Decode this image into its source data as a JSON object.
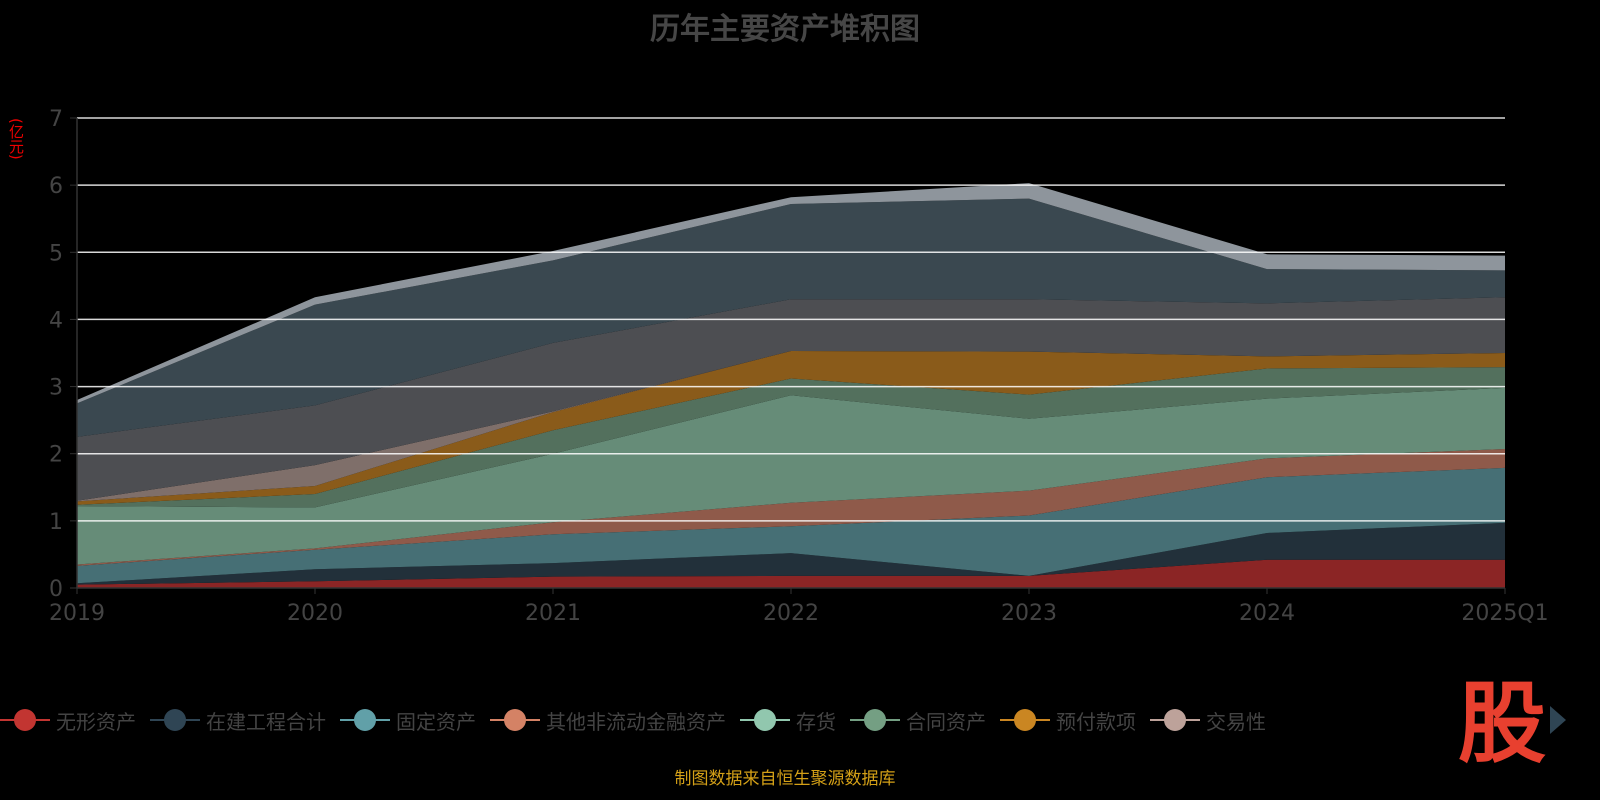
{
  "title": "历年主要资产堆积图",
  "source": "制图数据来自恒生聚源数据库",
  "logo_text": "股",
  "chart_data": {
    "type": "area",
    "stacked": true,
    "title": "历年主要资产堆积图",
    "ylabel": "(亿元)",
    "xlabel": "",
    "ylim": [
      0,
      7
    ],
    "yticks": [
      "0",
      "1",
      "2",
      "3",
      "4",
      "5",
      "6",
      "7"
    ],
    "categories": [
      "2019",
      "2020",
      "2021",
      "2022",
      "2023",
      "2024",
      "2025Q1"
    ],
    "grid": true,
    "legend_position": "bottom",
    "series": [
      {
        "name": "无形资产",
        "color": "#c23531",
        "fill": "#8b2525",
        "values": [
          0.05,
          0.1,
          0.17,
          0.18,
          0.18,
          0.42,
          0.42
        ]
      },
      {
        "name": "在建工程合计",
        "color": "#2f4554",
        "fill": "#22303a",
        "values": [
          0.02,
          0.18,
          0.2,
          0.34,
          0.0,
          0.4,
          0.55
        ]
      },
      {
        "name": "固定资产",
        "color": "#61a0a8",
        "fill": "#466f75",
        "values": [
          0.26,
          0.29,
          0.43,
          0.4,
          0.9,
          0.83,
          0.82
        ]
      },
      {
        "name": "其他非流动金融资产",
        "color": "#d48265",
        "fill": "#8f5a4a",
        "values": [
          0.02,
          0.02,
          0.18,
          0.35,
          0.37,
          0.28,
          0.28
        ]
      },
      {
        "name": "存货",
        "color": "#91c7ae",
        "fill": "#668c78",
        "values": [
          0.87,
          0.61,
          1.02,
          1.6,
          1.07,
          0.89,
          0.91
        ]
      },
      {
        "name": "合同资产",
        "color": "#749f83",
        "fill": "#53705d",
        "values": [
          0.02,
          0.2,
          0.35,
          0.25,
          0.36,
          0.45,
          0.31
        ]
      },
      {
        "name": "预付款项",
        "color": "#ca8622",
        "fill": "#8a5b1a",
        "values": [
          0.05,
          0.12,
          0.27,
          0.41,
          0.64,
          0.18,
          0.21
        ]
      },
      {
        "name": "交易性",
        "color": "#bda29a",
        "fill": "#7f6f6a",
        "values": [
          0.01,
          0.31,
          0.01,
          0.0,
          0.0,
          0.0,
          0.0
        ]
      },
      {
        "name": "",
        "color": "#6e7074",
        "fill": "#4d4e52",
        "values": [
          0.95,
          0.89,
          1.02,
          0.77,
          0.78,
          0.79,
          0.83
        ]
      },
      {
        "name": "",
        "color": "#546570",
        "fill": "#3a4850",
        "values": [
          0.5,
          1.5,
          1.23,
          1.42,
          1.5,
          0.51,
          0.4
        ]
      },
      {
        "name": "",
        "color": "#c4ccd3",
        "fill": "#8e959c",
        "values": [
          0.05,
          0.11,
          0.14,
          0.1,
          0.23,
          0.22,
          0.22
        ]
      }
    ]
  }
}
